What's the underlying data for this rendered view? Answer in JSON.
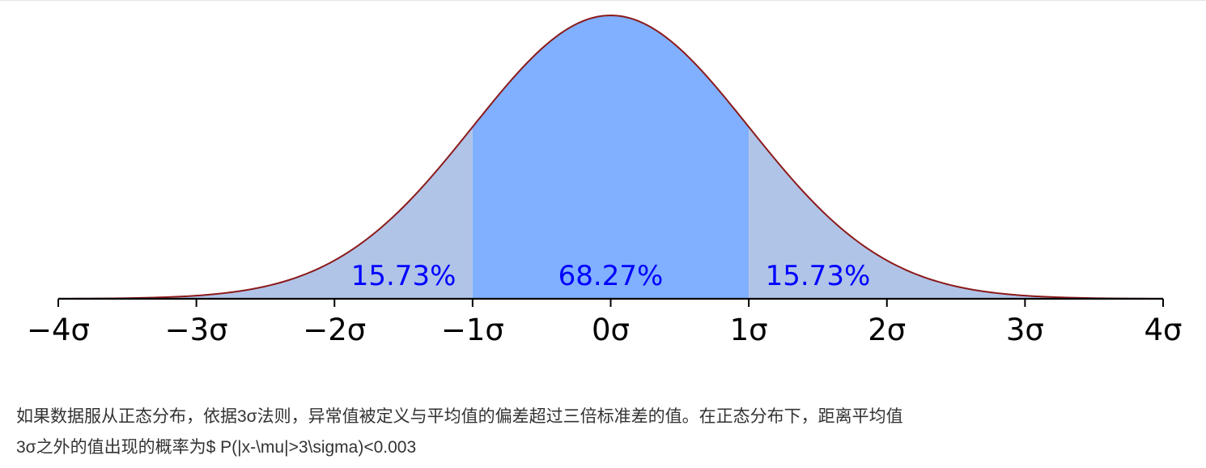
{
  "chart_data": {
    "type": "area",
    "distribution": "normal",
    "x_unit": "σ",
    "xlim": [
      -4,
      4
    ],
    "tick_values": [
      -4,
      -3,
      -2,
      -1,
      0,
      1,
      2,
      3,
      4
    ],
    "tick_labels": [
      "−4σ",
      "−3σ",
      "−2σ",
      "−1σ",
      "0σ",
      "1σ",
      "2σ",
      "3σ",
      "4σ"
    ],
    "regions": [
      {
        "from": -4,
        "to": -1,
        "color": "#b0c4e8"
      },
      {
        "from": -1,
        "to": 1,
        "color": "#80b0ff",
        "label": "68.27%"
      },
      {
        "from": 1,
        "to": 4,
        "color": "#b0c4e8"
      }
    ],
    "annotations": [
      {
        "text": "15.73%",
        "x": -1.5
      },
      {
        "text": "68.27%",
        "x": 0
      },
      {
        "text": "15.73%",
        "x": 1.5
      }
    ],
    "curve_color": "#8b1a1a",
    "annotation_color": "#0000ff"
  },
  "caption": {
    "line1": "如果数据服从正态分布，依据3σ法则，异常值被定义与平均值的偏差超过三倍标准差的值。在正态分布下，距离平均值",
    "line2": "3σ之外的值出现的概率为$ P(|x-\\mu|>3\\sigma)<0.003"
  }
}
